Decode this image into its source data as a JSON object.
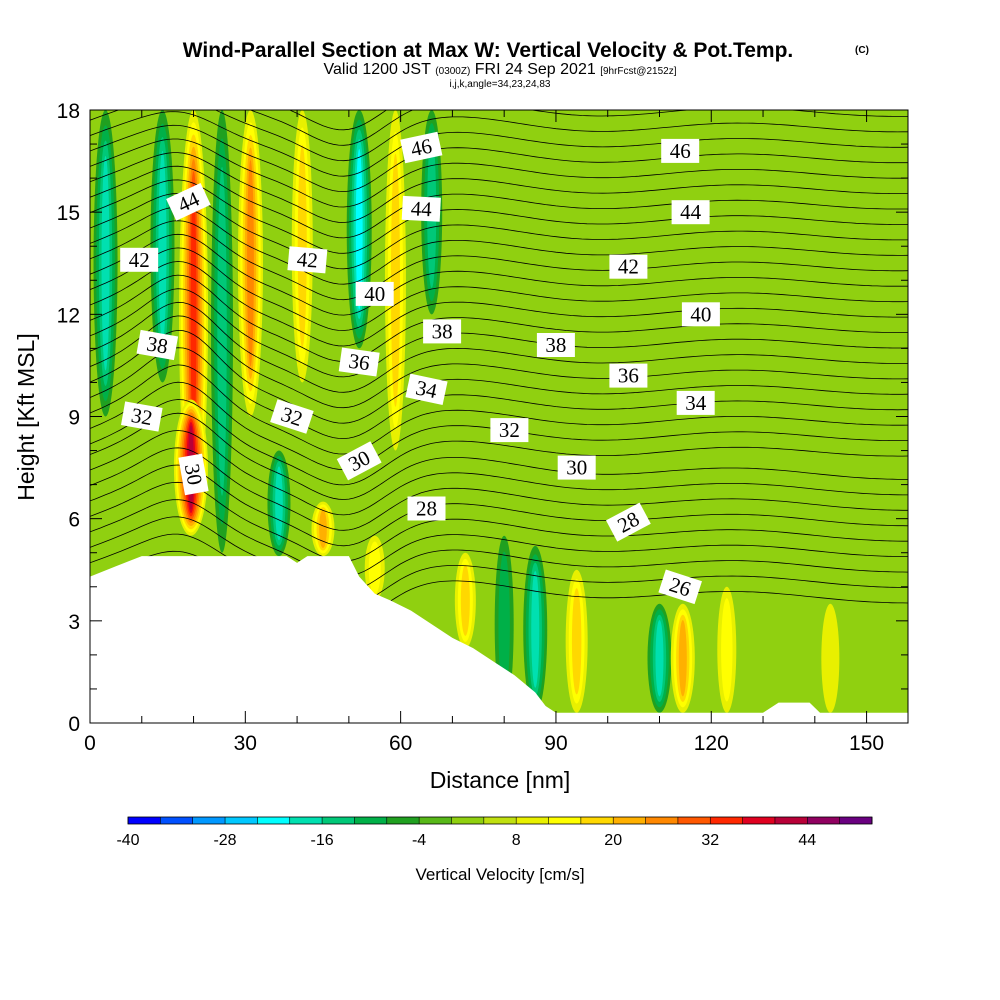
{
  "title": {
    "main": "Wind-Parallel Section at Max W: Vertical Velocity & Pot.Temp.",
    "copyright": "(C)",
    "valid_a": "Valid 1200 JST",
    "valid_b": "(0300Z)",
    "valid_c": "FRI 24 Sep 2021",
    "valid_d": "[9hrFcst@2152z]",
    "indices": "i,j,k,angle=34,23,24,83"
  },
  "chart_data": {
    "type": "heatmap",
    "xlabel": "Distance [nm]",
    "ylabel": "Height [Kft MSL]",
    "xlim": [
      0,
      158
    ],
    "ylim": [
      0,
      18
    ],
    "x_ticks": [
      0,
      30,
      60,
      90,
      120,
      150
    ],
    "y_ticks": [
      0,
      3,
      6,
      9,
      12,
      15,
      18
    ],
    "colorbar": {
      "label": "Vertical Velocity [cm/s]",
      "min": -40,
      "max": 52,
      "step": 4,
      "tick_values": [
        -40,
        -28,
        -16,
        -4,
        8,
        20,
        32,
        44
      ],
      "colors": [
        "#0000ff",
        "#0050ff",
        "#0098ff",
        "#00c8ff",
        "#00ffff",
        "#00e0b0",
        "#00c878",
        "#00b048",
        "#20a020",
        "#58b818",
        "#90d010",
        "#c0e010",
        "#e8f000",
        "#ffff00",
        "#ffd800",
        "#ffb000",
        "#ff8800",
        "#ff5800",
        "#ff2800",
        "#e00020",
        "#b80038",
        "#900060",
        "#6a0080"
      ]
    },
    "terrain_kft": [
      [
        0,
        4.3
      ],
      [
        5,
        4.6
      ],
      [
        10,
        4.9
      ],
      [
        38,
        4.9
      ],
      [
        40,
        4.7
      ],
      [
        42,
        4.9
      ],
      [
        50,
        4.9
      ],
      [
        52,
        4.3
      ],
      [
        55,
        3.8
      ],
      [
        58,
        3.6
      ],
      [
        62,
        3.3
      ],
      [
        66,
        2.9
      ],
      [
        70,
        2.5
      ],
      [
        74,
        2.2
      ],
      [
        78,
        1.8
      ],
      [
        82,
        1.4
      ],
      [
        86,
        0.9
      ],
      [
        88,
        0.5
      ],
      [
        90,
        0.3
      ],
      [
        100,
        0.3
      ],
      [
        130,
        0.3
      ],
      [
        133,
        0.6
      ],
      [
        139,
        0.6
      ],
      [
        141,
        0.3
      ],
      [
        158,
        0.3
      ]
    ],
    "vertical_velocity_features_cm_s": [
      {
        "x": 3,
        "zmin": 9,
        "zmax": 18,
        "value": -20
      },
      {
        "x": 14,
        "zmin": 10,
        "zmax": 18,
        "value": -20
      },
      {
        "x": 20,
        "zmin": 6,
        "zmax": 18,
        "value": 30
      },
      {
        "x": 19.5,
        "zmin": 5.5,
        "zmax": 9.5,
        "value": 40
      },
      {
        "x": 25.5,
        "zmin": 5,
        "zmax": 18,
        "value": -16
      },
      {
        "x": 31,
        "zmin": 9,
        "zmax": 18,
        "value": 22
      },
      {
        "x": 41,
        "zmin": 10,
        "zmax": 18,
        "value": 14
      },
      {
        "x": 52,
        "zmin": 11,
        "zmax": 18,
        "value": -22
      },
      {
        "x": 59,
        "zmin": 8,
        "zmax": 18,
        "value": 14
      },
      {
        "x": 66,
        "zmin": 12,
        "zmax": 18,
        "value": -14
      },
      {
        "x": 36.5,
        "zmin": 4.9,
        "zmax": 8,
        "value": -18
      },
      {
        "x": 45,
        "zmin": 4.9,
        "zmax": 6.5,
        "value": 18
      },
      {
        "x": 55,
        "zmin": 3.6,
        "zmax": 5.5,
        "value": 12
      },
      {
        "x": 72.5,
        "zmin": 2.2,
        "zmax": 5,
        "value": 14
      },
      {
        "x": 80,
        "zmin": 0.3,
        "zmax": 5.5,
        "value": -10
      },
      {
        "x": 86,
        "zmin": 0.3,
        "zmax": 5.2,
        "value": -20
      },
      {
        "x": 94,
        "zmin": 0.3,
        "zmax": 4.5,
        "value": 16
      },
      {
        "x": 110,
        "zmin": 0.3,
        "zmax": 3.5,
        "value": -20
      },
      {
        "x": 114.5,
        "zmin": 0.3,
        "zmax": 3.5,
        "value": 20
      },
      {
        "x": 123,
        "zmin": 0.3,
        "zmax": 4,
        "value": 10
      },
      {
        "x": 143,
        "zmin": 0.3,
        "zmax": 3.5,
        "value": 8
      }
    ],
    "isentrope_values": [
      26,
      28,
      30,
      32,
      34,
      36,
      38,
      40,
      42,
      44,
      46
    ],
    "contour_labels": [
      {
        "text": "46",
        "x": 64,
        "z": 16.9,
        "angle": 12
      },
      {
        "text": "46",
        "x": 114,
        "z": 16.8,
        "angle": 0
      },
      {
        "text": "44",
        "x": 19,
        "z": 15.3,
        "angle": 25
      },
      {
        "text": "44",
        "x": 64,
        "z": 15.1,
        "angle": -3
      },
      {
        "text": "44",
        "x": 116,
        "z": 15.0,
        "angle": 0
      },
      {
        "text": "42",
        "x": 9.5,
        "z": 13.6,
        "angle": 0
      },
      {
        "text": "42",
        "x": 42,
        "z": 13.6,
        "angle": -5
      },
      {
        "text": "42",
        "x": 104,
        "z": 13.4,
        "angle": 0
      },
      {
        "text": "40",
        "x": 55,
        "z": 12.6,
        "angle": 0
      },
      {
        "text": "40",
        "x": 118,
        "z": 12.0,
        "angle": 0
      },
      {
        "text": "38",
        "x": 13,
        "z": 11.1,
        "angle": -10
      },
      {
        "text": "38",
        "x": 68,
        "z": 11.5,
        "angle": 0
      },
      {
        "text": "38",
        "x": 90,
        "z": 11.1,
        "angle": 0
      },
      {
        "text": "36",
        "x": 52,
        "z": 10.6,
        "angle": -8
      },
      {
        "text": "36",
        "x": 104,
        "z": 10.2,
        "angle": 0
      },
      {
        "text": "34",
        "x": 65,
        "z": 9.8,
        "angle": -12
      },
      {
        "text": "34",
        "x": 117,
        "z": 9.4,
        "angle": 0
      },
      {
        "text": "32",
        "x": 10,
        "z": 9.0,
        "angle": -10
      },
      {
        "text": "32",
        "x": 39,
        "z": 9.0,
        "angle": -18
      },
      {
        "text": "32",
        "x": 81,
        "z": 8.6,
        "angle": 0
      },
      {
        "text": "30",
        "x": 20,
        "z": 7.3,
        "angle": -80
      },
      {
        "text": "30",
        "x": 52,
        "z": 7.7,
        "angle": 28
      },
      {
        "text": "30",
        "x": 94,
        "z": 7.5,
        "angle": 0
      },
      {
        "text": "28",
        "x": 65,
        "z": 6.3,
        "angle": 0
      },
      {
        "text": "28",
        "x": 104,
        "z": 5.9,
        "angle": 28
      },
      {
        "text": "26",
        "x": 114,
        "z": 4.0,
        "angle": -18
      }
    ]
  }
}
